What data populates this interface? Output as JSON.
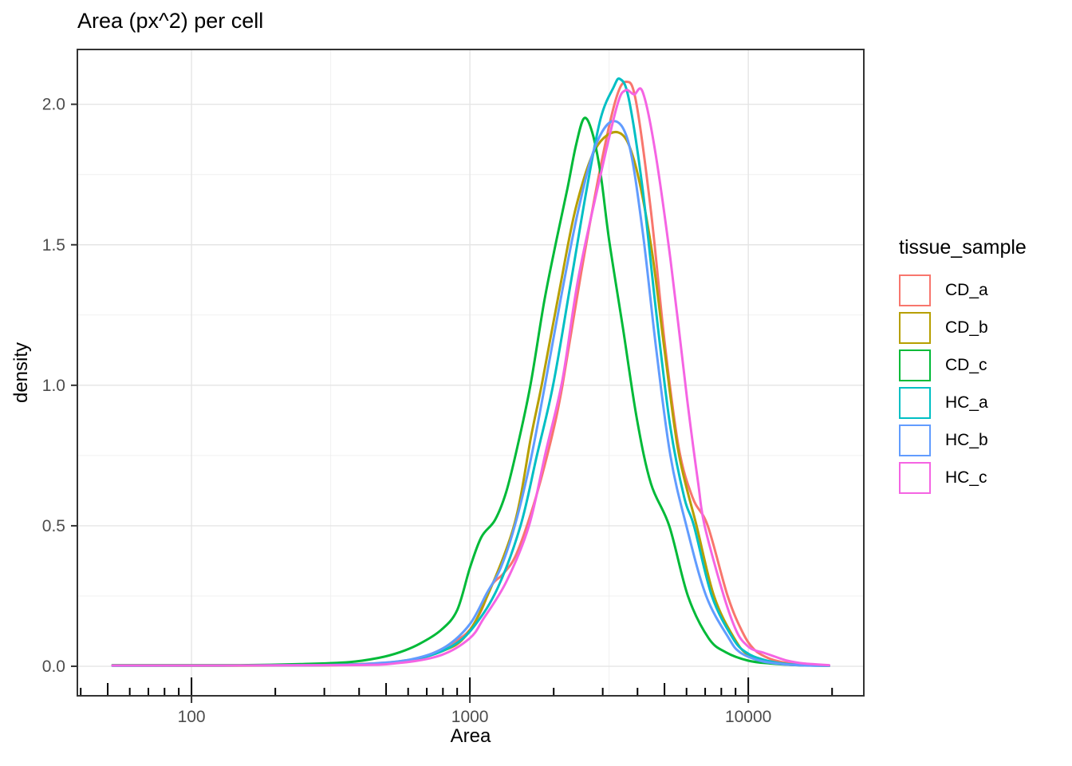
{
  "chart_data": {
    "type": "line",
    "subtype": "density",
    "title": "Area (px^2) per cell",
    "xlabel": "Area",
    "ylabel": "density",
    "legend_title": "tissue_sample",
    "legend_position": "right",
    "grid": true,
    "x_scale": "log10",
    "x_logticks": true,
    "x_domain_log10": [
      1.59,
      4.415
    ],
    "y_domain": [
      -0.105,
      2.195
    ],
    "x_ticks": [
      100,
      1000,
      10000
    ],
    "x_tick_labels": [
      "100",
      "1000",
      "10000"
    ],
    "x_minor_gridlines": [
      316.23,
      3162.3
    ],
    "y_ticks": [
      0.0,
      0.5,
      1.0,
      1.5,
      2.0
    ],
    "y_tick_labels": [
      "0.0",
      "0.5",
      "1.0",
      "1.5",
      "2.0"
    ],
    "y_minor_gridlines": [
      0.25,
      0.75,
      1.25,
      1.75
    ],
    "theme": {
      "panel_background": "#ffffff",
      "panel_border": "#333333",
      "grid_major": "#e5e5e5",
      "grid_minor": "#f0f0f0",
      "tick_color": "#333333",
      "logtick_color": "#000000",
      "tick_text_color": "#4d4d4d",
      "text_color": "#000000"
    },
    "series": [
      {
        "name": "CD_a",
        "color": "#F8766D",
        "points": [
          [
            52,
            0.003
          ],
          [
            200,
            0.003
          ],
          [
            400,
            0.008
          ],
          [
            560,
            0.018
          ],
          [
            710,
            0.04
          ],
          [
            890,
            0.09
          ],
          [
            1000,
            0.13
          ],
          [
            1100,
            0.2
          ],
          [
            1200,
            0.29
          ],
          [
            1320,
            0.33
          ],
          [
            1470,
            0.4
          ],
          [
            1700,
            0.58
          ],
          [
            1950,
            0.8
          ],
          [
            2150,
            1.0
          ],
          [
            2510,
            1.4
          ],
          [
            2950,
            1.78
          ],
          [
            3350,
            2.02
          ],
          [
            3650,
            2.08
          ],
          [
            3950,
            2.01
          ],
          [
            4470,
            1.62
          ],
          [
            5010,
            1.15
          ],
          [
            5620,
            0.78
          ],
          [
            6310,
            0.6
          ],
          [
            7150,
            0.5
          ],
          [
            8430,
            0.25
          ],
          [
            9550,
            0.12
          ],
          [
            10500,
            0.06
          ],
          [
            11750,
            0.03
          ],
          [
            13200,
            0.015
          ],
          [
            15100,
            0.007
          ],
          [
            19500,
            0.003
          ]
        ]
      },
      {
        "name": "CD_b",
        "color": "#B79F00",
        "points": [
          [
            52,
            0.002
          ],
          [
            250,
            0.003
          ],
          [
            450,
            0.008
          ],
          [
            630,
            0.025
          ],
          [
            800,
            0.055
          ],
          [
            950,
            0.1
          ],
          [
            1120,
            0.22
          ],
          [
            1440,
            0.5
          ],
          [
            1660,
            0.82
          ],
          [
            1810,
            1.0
          ],
          [
            2090,
            1.33
          ],
          [
            2400,
            1.63
          ],
          [
            2820,
            1.84
          ],
          [
            3410,
            1.9
          ],
          [
            3890,
            1.8
          ],
          [
            4470,
            1.5
          ],
          [
            5010,
            1.12
          ],
          [
            5620,
            0.76
          ],
          [
            6520,
            0.5
          ],
          [
            7530,
            0.25
          ],
          [
            8900,
            0.1
          ],
          [
            10000,
            0.04
          ],
          [
            12000,
            0.015
          ],
          [
            14500,
            0.005
          ],
          [
            19500,
            0.002
          ]
        ]
      },
      {
        "name": "CD_c",
        "color": "#00BA38",
        "points": [
          [
            52,
            0.004
          ],
          [
            150,
            0.004
          ],
          [
            250,
            0.008
          ],
          [
            370,
            0.015
          ],
          [
            470,
            0.03
          ],
          [
            560,
            0.05
          ],
          [
            660,
            0.08
          ],
          [
            790,
            0.13
          ],
          [
            900,
            0.2
          ],
          [
            1000,
            0.35
          ],
          [
            1100,
            0.46
          ],
          [
            1230,
            0.52
          ],
          [
            1350,
            0.62
          ],
          [
            1480,
            0.78
          ],
          [
            1650,
            1.0
          ],
          [
            1850,
            1.3
          ],
          [
            2050,
            1.52
          ],
          [
            2240,
            1.7
          ],
          [
            2400,
            1.85
          ],
          [
            2570,
            1.95
          ],
          [
            2750,
            1.9
          ],
          [
            2950,
            1.75
          ],
          [
            3160,
            1.52
          ],
          [
            3550,
            1.2
          ],
          [
            3980,
            0.88
          ],
          [
            4470,
            0.65
          ],
          [
            5200,
            0.5
          ],
          [
            6070,
            0.25
          ],
          [
            7200,
            0.1
          ],
          [
            8300,
            0.05
          ],
          [
            10000,
            0.02
          ],
          [
            12000,
            0.01
          ],
          [
            15000,
            0.004
          ],
          [
            19500,
            0.002
          ]
        ]
      },
      {
        "name": "HC_a",
        "color": "#00BFC4",
        "points": [
          [
            52,
            0.002
          ],
          [
            300,
            0.004
          ],
          [
            500,
            0.012
          ],
          [
            700,
            0.035
          ],
          [
            890,
            0.08
          ],
          [
            1050,
            0.15
          ],
          [
            1260,
            0.28
          ],
          [
            1520,
            0.5
          ],
          [
            1740,
            0.75
          ],
          [
            1990,
            1.0
          ],
          [
            2290,
            1.35
          ],
          [
            2630,
            1.7
          ],
          [
            2950,
            1.95
          ],
          [
            3280,
            2.06
          ],
          [
            3460,
            2.09
          ],
          [
            3720,
            2.02
          ],
          [
            4170,
            1.7
          ],
          [
            4680,
            1.25
          ],
          [
            5250,
            0.85
          ],
          [
            5890,
            0.6
          ],
          [
            6380,
            0.5
          ],
          [
            7400,
            0.25
          ],
          [
            8800,
            0.1
          ],
          [
            9800,
            0.05
          ],
          [
            11200,
            0.025
          ],
          [
            13200,
            0.01
          ],
          [
            15800,
            0.004
          ],
          [
            19500,
            0.002
          ]
        ]
      },
      {
        "name": "HC_b",
        "color": "#619CFF",
        "points": [
          [
            52,
            0.002
          ],
          [
            280,
            0.004
          ],
          [
            480,
            0.012
          ],
          [
            650,
            0.03
          ],
          [
            820,
            0.07
          ],
          [
            1000,
            0.15
          ],
          [
            1150,
            0.26
          ],
          [
            1290,
            0.35
          ],
          [
            1450,
            0.5
          ],
          [
            1650,
            0.73
          ],
          [
            1860,
            1.0
          ],
          [
            2140,
            1.33
          ],
          [
            2460,
            1.63
          ],
          [
            2820,
            1.85
          ],
          [
            3270,
            1.94
          ],
          [
            3720,
            1.86
          ],
          [
            4170,
            1.55
          ],
          [
            4680,
            1.12
          ],
          [
            5250,
            0.75
          ],
          [
            5990,
            0.5
          ],
          [
            7060,
            0.25
          ],
          [
            8510,
            0.1
          ],
          [
            9330,
            0.05
          ],
          [
            11000,
            0.02
          ],
          [
            13200,
            0.008
          ],
          [
            16000,
            0.003
          ],
          [
            19500,
            0.002
          ]
        ]
      },
      {
        "name": "HC_c",
        "color": "#F564E3",
        "points": [
          [
            52,
            0.003
          ],
          [
            350,
            0.004
          ],
          [
            560,
            0.012
          ],
          [
            790,
            0.04
          ],
          [
            1000,
            0.1
          ],
          [
            1120,
            0.17
          ],
          [
            1350,
            0.3
          ],
          [
            1630,
            0.5
          ],
          [
            1870,
            0.76
          ],
          [
            2150,
            1.02
          ],
          [
            2450,
            1.38
          ],
          [
            2950,
            1.75
          ],
          [
            3390,
            2.0
          ],
          [
            3630,
            2.05
          ],
          [
            3890,
            2.035
          ],
          [
            4170,
            2.045
          ],
          [
            4600,
            1.85
          ],
          [
            5250,
            1.45
          ],
          [
            6030,
            0.95
          ],
          [
            6610,
            0.65
          ],
          [
            6970,
            0.5
          ],
          [
            8170,
            0.25
          ],
          [
            9120,
            0.12
          ],
          [
            10000,
            0.07
          ],
          [
            10700,
            0.055
          ],
          [
            11200,
            0.05
          ],
          [
            12000,
            0.04
          ],
          [
            13800,
            0.02
          ],
          [
            15850,
            0.01
          ],
          [
            19500,
            0.004
          ]
        ]
      }
    ]
  }
}
